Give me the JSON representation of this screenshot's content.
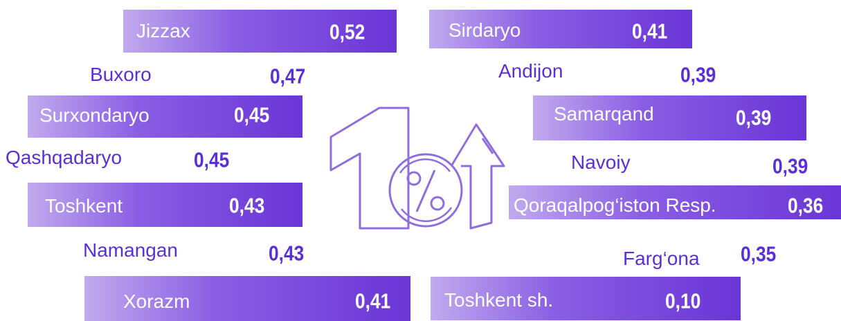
{
  "items": [
    {
      "name": "Jizzax",
      "value": "0,52"
    },
    {
      "name": "Buxoro",
      "value": "0,47"
    },
    {
      "name": "Surxondaryo",
      "value": "0,45"
    },
    {
      "name": "Qashqadaryo",
      "value": "0,45"
    },
    {
      "name": "Toshkent",
      "value": "0,43"
    },
    {
      "name": "Namangan",
      "value": "0,43"
    },
    {
      "name": "Xorazm",
      "value": "0,41"
    },
    {
      "name": "Sirdaryo",
      "value": "0,41"
    },
    {
      "name": "Andijon",
      "value": "0,39"
    },
    {
      "name": "Samarqand",
      "value": "0,39"
    },
    {
      "name": "Navoiy",
      "value": "0,39"
    },
    {
      "name": "Qoraqalpog‘iston Resp.",
      "value": "0,36"
    },
    {
      "name": "Farg‘ona",
      "value": "0,35"
    },
    {
      "name": "Toshkent sh.",
      "value": "0,10"
    }
  ]
}
